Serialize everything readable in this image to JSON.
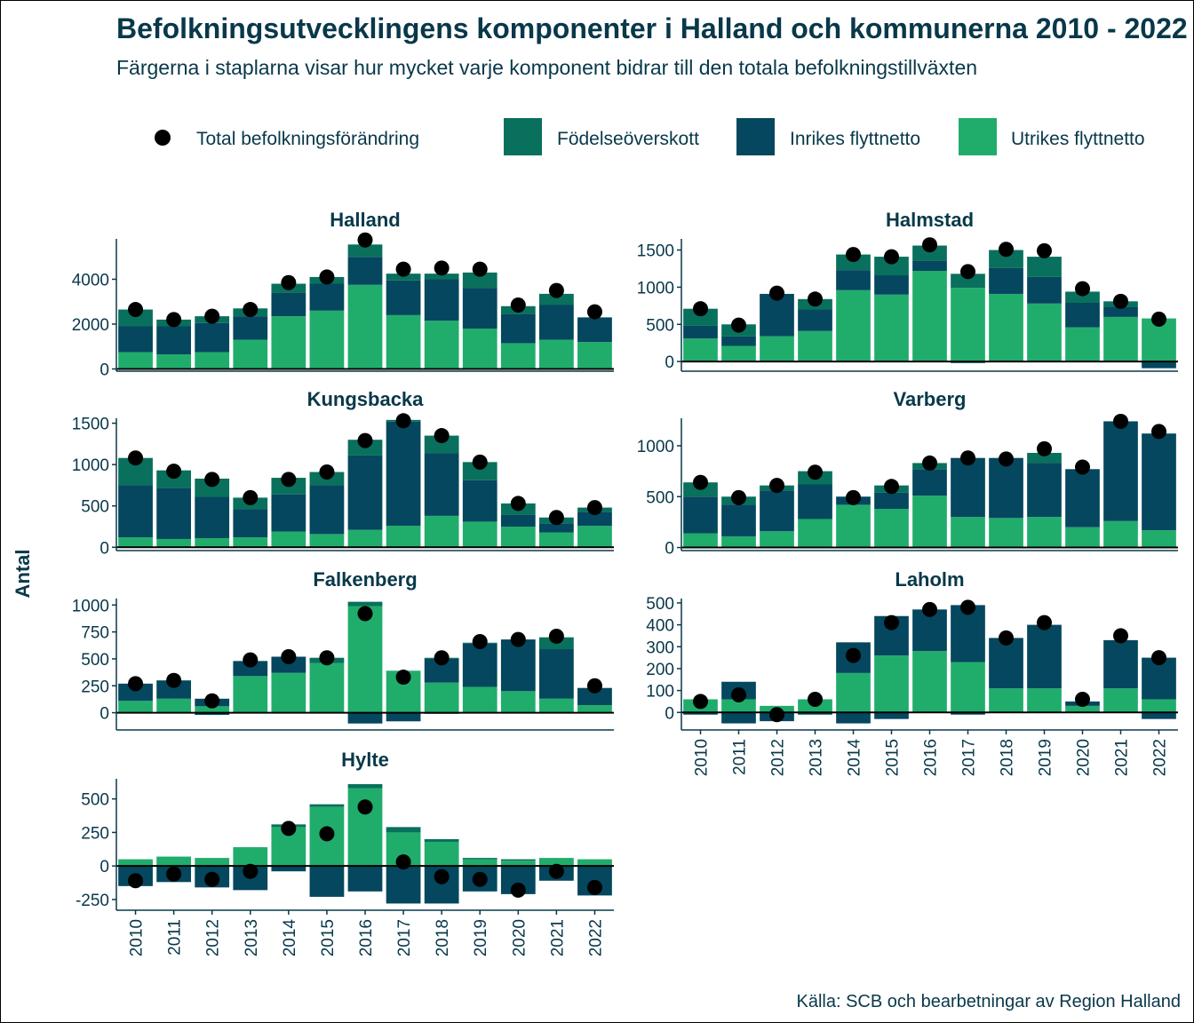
{
  "chart_data": {
    "type": "bar",
    "title": "Befolkningsutvecklingens komponenter i Halland och kommunerna 2010 - 2022",
    "subtitle": "Färgerna i staplarna visar hur mycket varje komponent bidrar till den totala befolkningstillväxten",
    "ylabel": "Antal",
    "source": "Källa: SCB och bearbetningar av Region Halland",
    "categories": [
      "2010",
      "2011",
      "2012",
      "2013",
      "2014",
      "2015",
      "2016",
      "2017",
      "2018",
      "2019",
      "2020",
      "2021",
      "2022"
    ],
    "legend": [
      {
        "key": "total",
        "label": "Total befolkningsförändring",
        "color": "#000000"
      },
      {
        "key": "fodelse",
        "label": "Födelseöverskott",
        "color": "#08705c"
      },
      {
        "key": "inrikes",
        "label": "Inrikes flyttnetto",
        "color": "#04475e"
      },
      {
        "key": "utrikes",
        "label": "Utrikes flyttnetto",
        "color": "#20ad6c"
      }
    ],
    "legend_position": "top",
    "panels": [
      {
        "name": "Halland",
        "ylim": [
          -100,
          5800
        ],
        "yticks": [
          0,
          2000,
          4000
        ],
        "utrikes": [
          750,
          650,
          750,
          1300,
          2350,
          2600,
          3750,
          2400,
          2150,
          1800,
          1150,
          1300,
          1200
        ],
        "inrikes": [
          1150,
          1250,
          1300,
          1050,
          1050,
          1200,
          1250,
          1550,
          1850,
          1800,
          1300,
          1550,
          1100
        ],
        "fodelse": [
          750,
          300,
          300,
          350,
          400,
          300,
          550,
          300,
          250,
          700,
          350,
          500,
          0
        ],
        "total": [
          2650,
          2200,
          2350,
          2650,
          3850,
          4100,
          5750,
          4450,
          4500,
          4450,
          2850,
          3500,
          2550
        ]
      },
      {
        "name": "Halmstad",
        "ylim": [
          -130,
          1650
        ],
        "yticks": [
          0,
          500,
          1000,
          1500
        ],
        "utrikes": [
          310,
          210,
          340,
          410,
          960,
          900,
          1220,
          990,
          910,
          780,
          460,
          600,
          580
        ],
        "inrikes": [
          170,
          130,
          570,
          290,
          270,
          260,
          140,
          0,
          350,
          360,
          330,
          140,
          -90
        ],
        "fodelse": [
          230,
          160,
          0,
          140,
          210,
          250,
          200,
          190,
          240,
          270,
          150,
          70,
          0
        ],
        "neg_extra": [
          0,
          0,
          0,
          0,
          0,
          0,
          0,
          -20,
          0,
          0,
          0,
          0,
          0
        ],
        "total": [
          710,
          490,
          920,
          840,
          1440,
          1410,
          1570,
          1210,
          1510,
          1490,
          980,
          810,
          570
        ]
      },
      {
        "name": "Kungsbacka",
        "ylim": [
          -40,
          1560
        ],
        "yticks": [
          0,
          500,
          1000,
          1500
        ],
        "utrikes": [
          120,
          100,
          110,
          120,
          190,
          160,
          210,
          260,
          380,
          310,
          250,
          180,
          260
        ],
        "inrikes": [
          630,
          620,
          500,
          340,
          450,
          590,
          900,
          1260,
          760,
          500,
          140,
          110,
          170
        ],
        "fodelse": [
          330,
          210,
          220,
          140,
          200,
          160,
          190,
          20,
          210,
          220,
          140,
          70,
          50
        ],
        "total": [
          1080,
          920,
          820,
          600,
          820,
          910,
          1290,
          1530,
          1350,
          1030,
          530,
          360,
          480
        ]
      },
      {
        "name": "Varberg",
        "ylim": [
          -30,
          1270
        ],
        "yticks": [
          0,
          500,
          1000
        ],
        "utrikes": [
          140,
          110,
          160,
          280,
          420,
          380,
          510,
          300,
          290,
          300,
          200,
          260,
          170
        ],
        "inrikes": [
          360,
          310,
          400,
          340,
          80,
          160,
          260,
          580,
          590,
          530,
          570,
          980,
          950
        ],
        "fodelse": [
          140,
          80,
          50,
          130,
          0,
          70,
          60,
          0,
          0,
          100,
          0,
          0,
          0
        ],
        "total": [
          640,
          490,
          610,
          740,
          490,
          600,
          830,
          880,
          870,
          970,
          790,
          1240,
          1140
        ]
      },
      {
        "name": "Falkenberg",
        "ylim": [
          -160,
          1060
        ],
        "yticks": [
          0,
          250,
          500,
          750,
          1000
        ],
        "utrikes": [
          110,
          130,
          60,
          340,
          370,
          460,
          990,
          390,
          280,
          240,
          200,
          130,
          70
        ],
        "inrikes": [
          160,
          170,
          70,
          140,
          150,
          0,
          0,
          0,
          220,
          400,
          480,
          460,
          160
        ],
        "fodelse": [
          0,
          0,
          0,
          0,
          0,
          50,
          40,
          0,
          10,
          10,
          0,
          110,
          0
        ],
        "neg_extra": [
          0,
          0,
          -20,
          0,
          0,
          0,
          -100,
          -80,
          -10,
          0,
          0,
          0,
          0
        ],
        "total": [
          270,
          300,
          110,
          490,
          520,
          510,
          920,
          330,
          510,
          660,
          680,
          710,
          250
        ]
      },
      {
        "name": "Laholm",
        "ylim": [
          -80,
          520
        ],
        "yticks": [
          0,
          100,
          200,
          300,
          400,
          500
        ],
        "utrikes": [
          60,
          60,
          30,
          60,
          180,
          260,
          280,
          230,
          110,
          110,
          30,
          110,
          60
        ],
        "inrikes": [
          0,
          80,
          0,
          0,
          140,
          180,
          190,
          260,
          230,
          290,
          20,
          220,
          190
        ],
        "fodelse": [
          0,
          0,
          0,
          0,
          0,
          0,
          0,
          0,
          0,
          0,
          0,
          0,
          0
        ],
        "neg_extra": [
          -10,
          -50,
          -40,
          -10,
          -50,
          -30,
          0,
          -10,
          0,
          0,
          0,
          0,
          -30
        ],
        "total": [
          50,
          80,
          -10,
          60,
          260,
          410,
          470,
          480,
          340,
          410,
          60,
          350,
          250
        ]
      },
      {
        "name": "Hylte",
        "ylim": [
          -330,
          650
        ],
        "yticks": [
          -250,
          0,
          250,
          500
        ],
        "utrikes": [
          50,
          70,
          60,
          140,
          290,
          440,
          580,
          250,
          180,
          50,
          40,
          60,
          50
        ],
        "inrikes": [
          -150,
          -120,
          -160,
          -180,
          -40,
          -230,
          -190,
          -280,
          -280,
          -190,
          -210,
          -110,
          -220
        ],
        "fodelse": [
          0,
          0,
          0,
          0,
          20,
          20,
          30,
          40,
          20,
          10,
          10,
          0,
          0
        ],
        "total": [
          -110,
          -60,
          -100,
          -40,
          280,
          240,
          440,
          30,
          -80,
          -100,
          -180,
          -40,
          -160
        ]
      }
    ]
  }
}
